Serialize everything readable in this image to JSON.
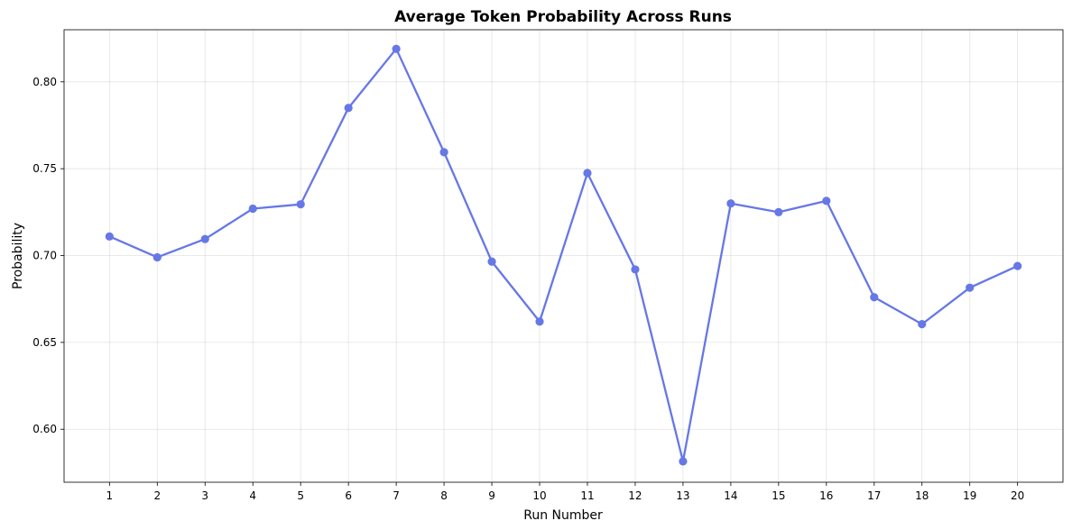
{
  "chart_data": {
    "type": "line",
    "title": "Average Token Probability Across Runs",
    "xlabel": "Run Number",
    "ylabel": "Probability",
    "x": [
      1,
      2,
      3,
      4,
      5,
      6,
      7,
      8,
      9,
      10,
      11,
      12,
      13,
      14,
      15,
      16,
      17,
      18,
      19,
      20
    ],
    "x_ticks": [
      "1",
      "2",
      "3",
      "4",
      "5",
      "6",
      "7",
      "8",
      "9",
      "10",
      "11",
      "12",
      "13",
      "14",
      "15",
      "16",
      "17",
      "18",
      "19",
      "20"
    ],
    "values": [
      0.711,
      0.699,
      0.7095,
      0.727,
      0.7295,
      0.785,
      0.819,
      0.7595,
      0.6965,
      0.662,
      0.7475,
      0.692,
      0.5815,
      0.73,
      0.725,
      0.7315,
      0.676,
      0.6605,
      0.6815,
      0.694
    ],
    "y_ticks": [
      "0.60",
      "0.65",
      "0.70",
      "0.75",
      "0.80"
    ],
    "xlim": [
      0.05,
      20.95
    ],
    "ylim": [
      0.5695,
      0.83
    ],
    "grid": true,
    "line_color": "#6677e6",
    "marker_color": "#6677e6"
  }
}
